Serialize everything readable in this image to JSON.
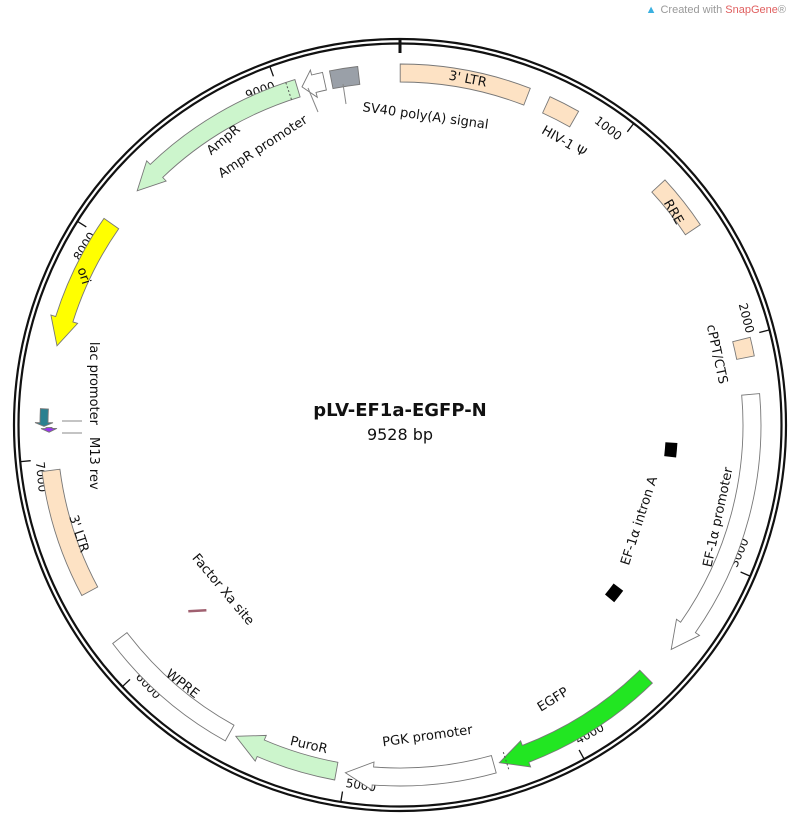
{
  "watermark": {
    "prefix": "Created with ",
    "brand": "SnapGene",
    "suffix": "®"
  },
  "plasmid": {
    "name": "pLV-EF1a-EGFP-N",
    "size_label": "9528 bp",
    "length_bp": 9528
  },
  "ticks": [
    {
      "bp": 1000,
      "label": "1000"
    },
    {
      "bp": 2000,
      "label": "2000"
    },
    {
      "bp": 3000,
      "label": "3000"
    },
    {
      "bp": 4000,
      "label": "4000"
    },
    {
      "bp": 5000,
      "label": "5000"
    },
    {
      "bp": 6000,
      "label": "6000"
    },
    {
      "bp": 7000,
      "label": "7000"
    },
    {
      "bp": 8000,
      "label": "8000"
    },
    {
      "bp": 9000,
      "label": "9000"
    }
  ],
  "features": [
    {
      "name": "3' LTR",
      "start": 1,
      "end": 560,
      "direction": 0,
      "color": "#fde2c4"
    },
    {
      "name": "HIV-1 Ψ",
      "start": 650,
      "end": 785,
      "direction": 0,
      "color": "#fde2c4"
    },
    {
      "name": "RRE",
      "start": 1250,
      "end": 1490,
      "direction": 0,
      "color": "#fde2c4"
    },
    {
      "name": "cPPT/CTS",
      "start": 2010,
      "end": 2090,
      "direction": 0,
      "color": "#fde2c4"
    },
    {
      "name": "EF-1α promoter",
      "start": 2250,
      "end": 3430,
      "direction": 1,
      "color": "#ffffff"
    },
    {
      "name": "EF-1α intron A",
      "start": 2520,
      "end": 3390,
      "direction": 0,
      "color": "#000000"
    },
    {
      "name": "EGFP",
      "start": 3590,
      "end": 4330,
      "direction": 1,
      "color": "#22e622"
    },
    {
      "name": "PGK promoter",
      "start": 4355,
      "end": 5000,
      "direction": 1,
      "color": "#ffffff"
    },
    {
      "name": "PuroR",
      "start": 5040,
      "end": 5500,
      "direction": 1,
      "color": "#ccf5cc"
    },
    {
      "name": "WPRE",
      "start": 5530,
      "end": 6160,
      "direction": 0,
      "color": "#ffffff"
    },
    {
      "name": "Factor Xa site",
      "start": 6020,
      "end": 6035,
      "direction": 0,
      "color": "#a06070"
    },
    {
      "name": "3' LTR",
      "start": 6400,
      "end": 6950,
      "direction": 0,
      "color": "#fde2c4"
    },
    {
      "name": "M13 rev",
      "start": 7115,
      "end": 7135,
      "direction": -1,
      "color": "#9933ee"
    },
    {
      "name": "lac promoter",
      "start": 7140,
      "end": 7215,
      "direction": -1,
      "color": "#2a8090"
    },
    {
      "name": "ori",
      "start": 7490,
      "end": 8070,
      "direction": -1,
      "color": "#ffff00"
    },
    {
      "name": "AmpR",
      "start": 8250,
      "end": 9080,
      "direction": -1,
      "color": "#ccf5cc"
    },
    {
      "name": "AmpR promoter",
      "start": 9100,
      "end": 9200,
      "direction": -1,
      "color": "#ffffff"
    },
    {
      "name": "SV40 poly(A) signal",
      "start": 9230,
      "end": 9350,
      "direction": 0,
      "color": "#9aa0a8"
    }
  ]
}
